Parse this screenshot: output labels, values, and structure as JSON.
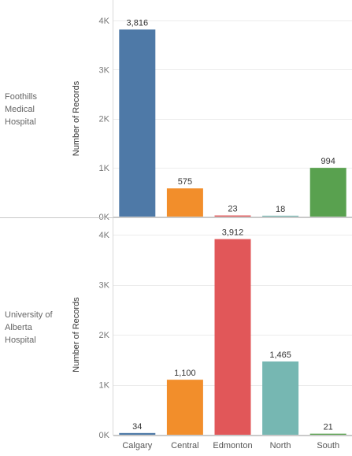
{
  "chart_data": {
    "type": "bar",
    "ylabel": "Number of Records",
    "categories": [
      "Calgary",
      "Central",
      "Edmonton",
      "North",
      "South"
    ],
    "category_colors": [
      "#4e79a7",
      "#f28e2b",
      "#e15759",
      "#76b7b2",
      "#59a14f"
    ],
    "yticks": [
      0,
      1000,
      2000,
      3000,
      4000
    ],
    "ytick_labels": [
      "0K",
      "1K",
      "2K",
      "3K",
      "4K"
    ],
    "ylim": [
      0,
      4300
    ],
    "grid": true,
    "panels": [
      {
        "row_label": [
          "Foothills",
          "Medical",
          "Hospital"
        ],
        "values": [
          3816,
          575,
          23,
          18,
          994
        ],
        "value_labels": [
          "3,816",
          "575",
          "23",
          "18",
          "994"
        ]
      },
      {
        "row_label": [
          "University of",
          "Alberta",
          "Hospital"
        ],
        "values": [
          34,
          1100,
          3912,
          1465,
          21
        ],
        "value_labels": [
          "34",
          "1,100",
          "3,912",
          "1,465",
          "21"
        ]
      }
    ]
  }
}
